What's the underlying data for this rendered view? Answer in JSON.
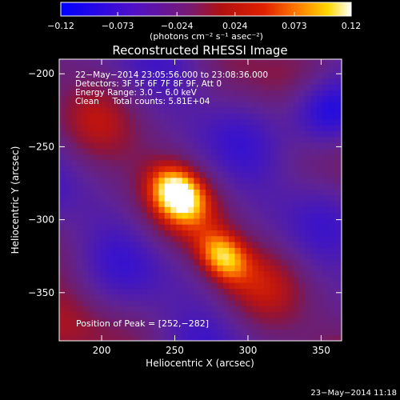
{
  "chart_data": {
    "type": "heatmap",
    "title": "Reconstructed RHESSI Image",
    "xlabel": "Heliocentric X (arcsec)",
    "ylabel": "Heliocentric Y (arcsec)",
    "xlim": [
      171,
      364
    ],
    "ylim": [
      -383,
      -190
    ],
    "x_ticks": [
      200,
      250,
      300,
      350
    ],
    "y_ticks": [
      -200,
      -250,
      -300,
      -350
    ],
    "x_tick_labels": [
      "200",
      "250",
      "300",
      "350"
    ],
    "y_tick_labels": [
      "−200",
      "−250",
      "−300",
      "−350"
    ],
    "colorbar": {
      "range": [
        -0.12,
        0.12
      ],
      "tick_labels": [
        "−0.12",
        "−0.073",
        "−0.024",
        "0.024",
        "0.073",
        "0.12"
      ],
      "units_label": "(photons cm⁻² s⁻¹ asec⁻²)"
    },
    "info_lines": [
      "22−May−2014 23:05:56.000 to 23:08:36.000",
      "Detectors: 3F 5F 6F 7F 8F 9F, Att 0",
      "Energy Range: 3.0 − 6.0 keV",
      "Clean     Total counts: 5.81E+04"
    ],
    "peak_label": "Position of Peak = [252,−282]",
    "peak_position": [
      252,
      -282
    ],
    "sources": [
      {
        "x": 252,
        "y": -282,
        "amplitude": 0.12
      },
      {
        "x": 283,
        "y": -325,
        "amplitude": 0.1
      }
    ],
    "colormap": "rainbow-fire (blue to purple to red to orange to yellow to white)"
  },
  "footer": {
    "timestamp": "23−May−2014 11:18"
  }
}
